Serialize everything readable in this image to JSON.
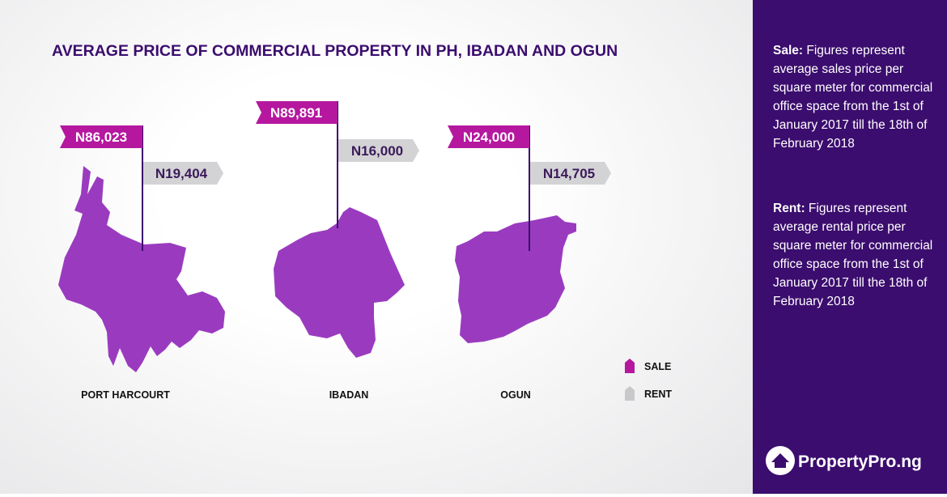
{
  "title": "AVERAGE PRICE OF COMMERCIAL PROPERTY IN PH, IBADAN AND OGUN",
  "cities": [
    {
      "name": "PORT HARCOURT",
      "sale": "N86,023",
      "rent": "N19,404"
    },
    {
      "name": "IBADAN",
      "sale": "N89,891",
      "rent": "N16,000"
    },
    {
      "name": "OGUN",
      "sale": "N24,000",
      "rent": "N14,705"
    }
  ],
  "legend": {
    "sale": "SALE",
    "rent": "RENT"
  },
  "sidebar": {
    "notes": [
      {
        "label": "Sale:",
        "text": "Figures represent average sales price per square meter for commercial office space from the 1st of January 2017 till the 18th of February 2018"
      },
      {
        "label": "Rent:",
        "text": "Figures represent average rental price per square meter for commercial office space from the 1st of January 2017 till the 18th of February 2018"
      }
    ]
  },
  "logo": "PropertyPro.ng"
}
